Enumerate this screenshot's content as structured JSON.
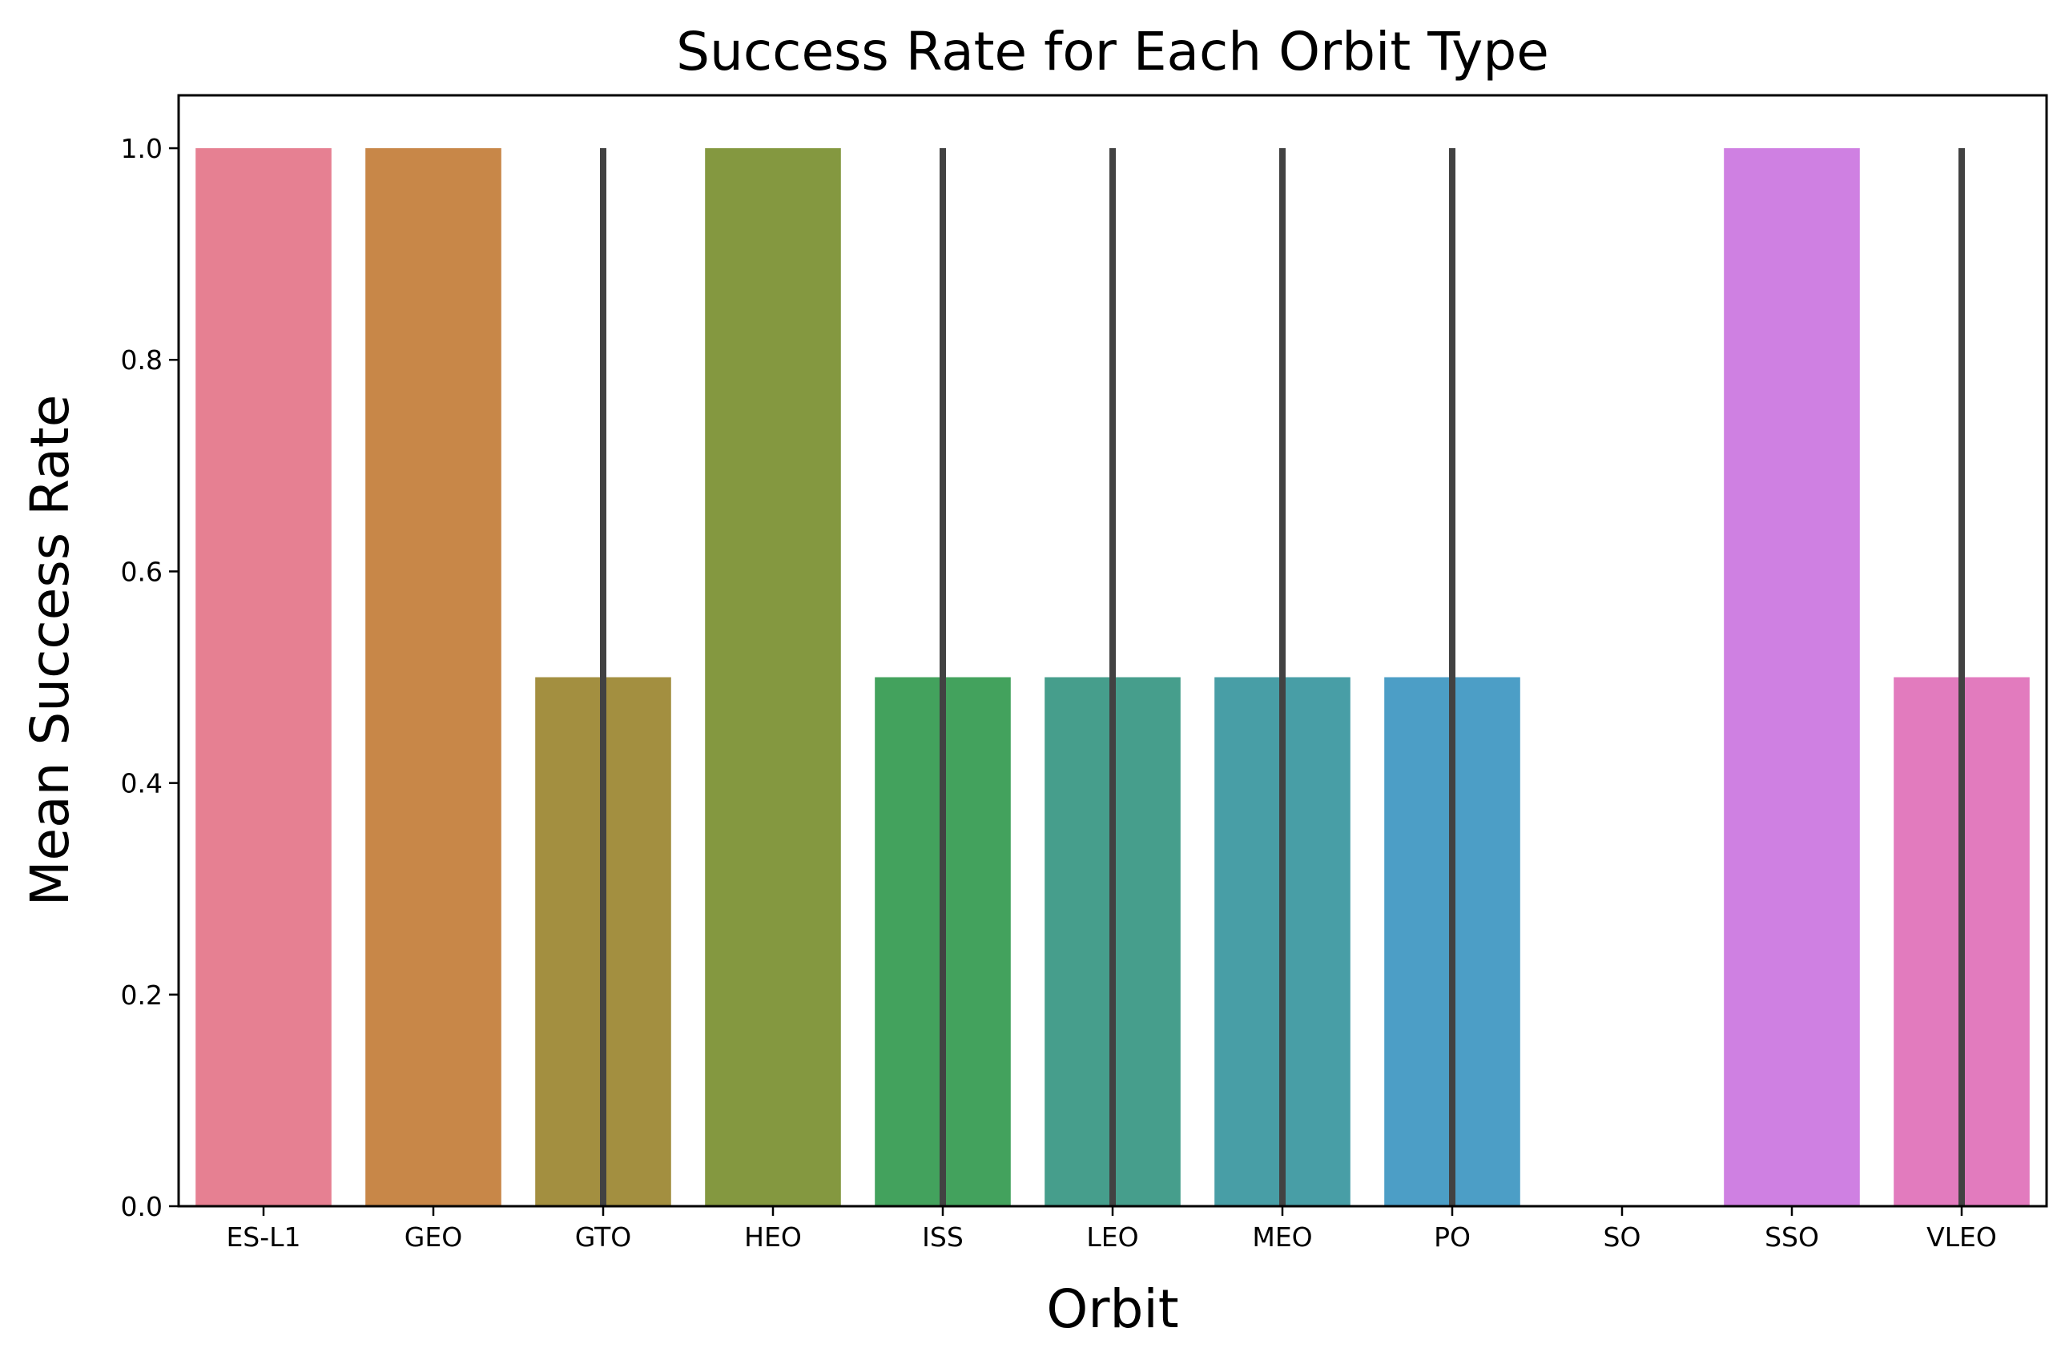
{
  "chart_data": {
    "type": "bar",
    "title": "Success Rate for Each Orbit Type",
    "xlabel": "Orbit",
    "ylabel": "Mean Success Rate",
    "categories": [
      "ES-L1",
      "GEO",
      "GTO",
      "HEO",
      "ISS",
      "LEO",
      "MEO",
      "PO",
      "SO",
      "SSO",
      "VLEO"
    ],
    "values": [
      1.0,
      1.0,
      0.5,
      1.0,
      0.5,
      0.5,
      0.5,
      0.5,
      0.0,
      1.0,
      0.5
    ],
    "error_bars": [
      null,
      null,
      [
        0.0,
        1.0
      ],
      null,
      [
        0.0,
        1.0
      ],
      [
        0.0,
        1.0
      ],
      [
        0.0,
        1.0
      ],
      [
        0.0,
        1.0
      ],
      null,
      null,
      [
        0.0,
        1.0
      ]
    ],
    "colors": [
      "#e68092",
      "#c88748",
      "#a38f40",
      "#849840",
      "#43a25d",
      "#469e8c",
      "#489ea6",
      "#4c9ec6",
      "#9a8ee2",
      "#cf80e2",
      "#e27bbe"
    ],
    "error_bar_color": "#424242",
    "ylim": [
      0.0,
      1.05
    ],
    "yticks": [
      "0.0",
      "0.2",
      "0.4",
      "0.6",
      "0.8",
      "1.0"
    ],
    "grid": false,
    "legend": "none"
  }
}
